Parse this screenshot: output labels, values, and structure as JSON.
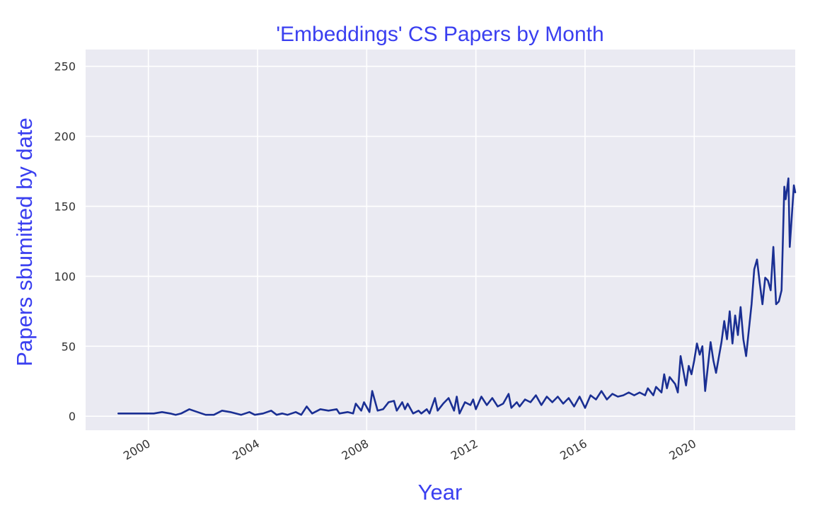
{
  "chart_data": {
    "type": "line",
    "title": "'Embeddings' CS Papers by Month",
    "xlabel": "Year",
    "ylabel": "Papers sbumitted by date",
    "xlim": [
      1997.7,
      2023.7
    ],
    "ylim": [
      -10,
      262
    ],
    "x_ticks": [
      {
        "value": 2000,
        "label": "2000"
      },
      {
        "value": 2004,
        "label": "2004"
      },
      {
        "value": 2008,
        "label": "2008"
      },
      {
        "value": 2012,
        "label": "2012"
      },
      {
        "value": 2016,
        "label": "2016"
      },
      {
        "value": 2020,
        "label": "2020"
      }
    ],
    "y_ticks": [
      {
        "value": 0,
        "label": "0"
      },
      {
        "value": 50,
        "label": "50"
      },
      {
        "value": 100,
        "label": "100"
      },
      {
        "value": 150,
        "label": "150"
      },
      {
        "value": 200,
        "label": "200"
      },
      {
        "value": 250,
        "label": "250"
      }
    ],
    "grid": true,
    "colors": {
      "background": "#eaeaf2",
      "grid": "#ffffff",
      "line": "#1a2f93",
      "text_accent": "#3a3ff0"
    },
    "series": [
      {
        "points": [
          [
            1998.9,
            2
          ],
          [
            1999.3,
            2
          ],
          [
            1999.8,
            2
          ],
          [
            2000.2,
            2
          ],
          [
            2000.5,
            3
          ],
          [
            2000.8,
            2
          ],
          [
            2001.0,
            1
          ],
          [
            2001.2,
            2
          ],
          [
            2001.5,
            5
          ],
          [
            2001.8,
            3
          ],
          [
            2002.1,
            1
          ],
          [
            2002.4,
            1
          ],
          [
            2002.7,
            4
          ],
          [
            2003.0,
            3
          ],
          [
            2003.4,
            1
          ],
          [
            2003.7,
            3
          ],
          [
            2003.9,
            1
          ],
          [
            2004.2,
            2
          ],
          [
            2004.5,
            4
          ],
          [
            2004.7,
            1
          ],
          [
            2004.9,
            2
          ],
          [
            2005.1,
            1
          ],
          [
            2005.4,
            3
          ],
          [
            2005.6,
            1
          ],
          [
            2005.8,
            7
          ],
          [
            2006.0,
            2
          ],
          [
            2006.3,
            5
          ],
          [
            2006.6,
            4
          ],
          [
            2006.9,
            5
          ],
          [
            2007.0,
            2
          ],
          [
            2007.3,
            3
          ],
          [
            2007.5,
            2
          ],
          [
            2007.6,
            9
          ],
          [
            2007.8,
            4
          ],
          [
            2007.9,
            10
          ],
          [
            2008.1,
            3
          ],
          [
            2008.2,
            18
          ],
          [
            2008.4,
            4
          ],
          [
            2008.6,
            5
          ],
          [
            2008.8,
            10
          ],
          [
            2009.0,
            11
          ],
          [
            2009.1,
            4
          ],
          [
            2009.3,
            10
          ],
          [
            2009.4,
            5
          ],
          [
            2009.5,
            9
          ],
          [
            2009.7,
            2
          ],
          [
            2009.9,
            4
          ],
          [
            2010.0,
            2
          ],
          [
            2010.2,
            5
          ],
          [
            2010.3,
            2
          ],
          [
            2010.5,
            13
          ],
          [
            2010.6,
            4
          ],
          [
            2010.8,
            9
          ],
          [
            2011.0,
            13
          ],
          [
            2011.2,
            4
          ],
          [
            2011.3,
            14
          ],
          [
            2011.4,
            2
          ],
          [
            2011.6,
            10
          ],
          [
            2011.8,
            8
          ],
          [
            2011.9,
            12
          ],
          [
            2012.0,
            5
          ],
          [
            2012.2,
            14
          ],
          [
            2012.4,
            8
          ],
          [
            2012.6,
            13
          ],
          [
            2012.8,
            7
          ],
          [
            2013.0,
            9
          ],
          [
            2013.2,
            16
          ],
          [
            2013.3,
            6
          ],
          [
            2013.5,
            10
          ],
          [
            2013.6,
            7
          ],
          [
            2013.8,
            12
          ],
          [
            2014.0,
            10
          ],
          [
            2014.2,
            15
          ],
          [
            2014.4,
            8
          ],
          [
            2014.6,
            14
          ],
          [
            2014.8,
            10
          ],
          [
            2015.0,
            14
          ],
          [
            2015.2,
            9
          ],
          [
            2015.4,
            13
          ],
          [
            2015.6,
            7
          ],
          [
            2015.8,
            14
          ],
          [
            2016.0,
            6
          ],
          [
            2016.2,
            15
          ],
          [
            2016.4,
            12
          ],
          [
            2016.6,
            18
          ],
          [
            2016.8,
            12
          ],
          [
            2017.0,
            16
          ],
          [
            2017.2,
            14
          ],
          [
            2017.4,
            15
          ],
          [
            2017.6,
            17
          ],
          [
            2017.8,
            15
          ],
          [
            2018.0,
            17
          ],
          [
            2018.2,
            15
          ],
          [
            2018.3,
            20
          ],
          [
            2018.5,
            15
          ],
          [
            2018.6,
            21
          ],
          [
            2018.8,
            17
          ],
          [
            2018.9,
            30
          ],
          [
            2019.0,
            20
          ],
          [
            2019.1,
            28
          ],
          [
            2019.3,
            23
          ],
          [
            2019.4,
            17
          ],
          [
            2019.5,
            43
          ],
          [
            2019.7,
            22
          ],
          [
            2019.8,
            36
          ],
          [
            2019.9,
            30
          ],
          [
            2020.0,
            40
          ],
          [
            2020.1,
            52
          ],
          [
            2020.2,
            44
          ],
          [
            2020.3,
            50
          ],
          [
            2020.4,
            18
          ],
          [
            2020.6,
            53
          ],
          [
            2020.7,
            40
          ],
          [
            2020.8,
            31
          ],
          [
            2021.0,
            53
          ],
          [
            2021.1,
            68
          ],
          [
            2021.2,
            55
          ],
          [
            2021.3,
            75
          ],
          [
            2021.4,
            52
          ],
          [
            2021.5,
            72
          ],
          [
            2021.6,
            58
          ],
          [
            2021.7,
            78
          ],
          [
            2021.8,
            55
          ],
          [
            2021.9,
            43
          ],
          [
            2022.1,
            80
          ],
          [
            2022.2,
            105
          ],
          [
            2022.3,
            112
          ],
          [
            2022.4,
            95
          ],
          [
            2022.5,
            80
          ],
          [
            2022.6,
            99
          ],
          [
            2022.7,
            97
          ],
          [
            2022.8,
            90
          ],
          [
            2022.9,
            121
          ],
          [
            2023.0,
            80
          ],
          [
            2023.1,
            82
          ],
          [
            2023.2,
            90
          ],
          [
            2023.3,
            164
          ],
          [
            2023.35,
            155
          ],
          [
            2023.4,
            162
          ],
          [
            2023.45,
            170
          ],
          [
            2023.5,
            121
          ],
          [
            2023.6,
            150
          ],
          [
            2023.65,
            165
          ],
          [
            2023.7,
            160
          ]
        ]
      }
    ]
  }
}
